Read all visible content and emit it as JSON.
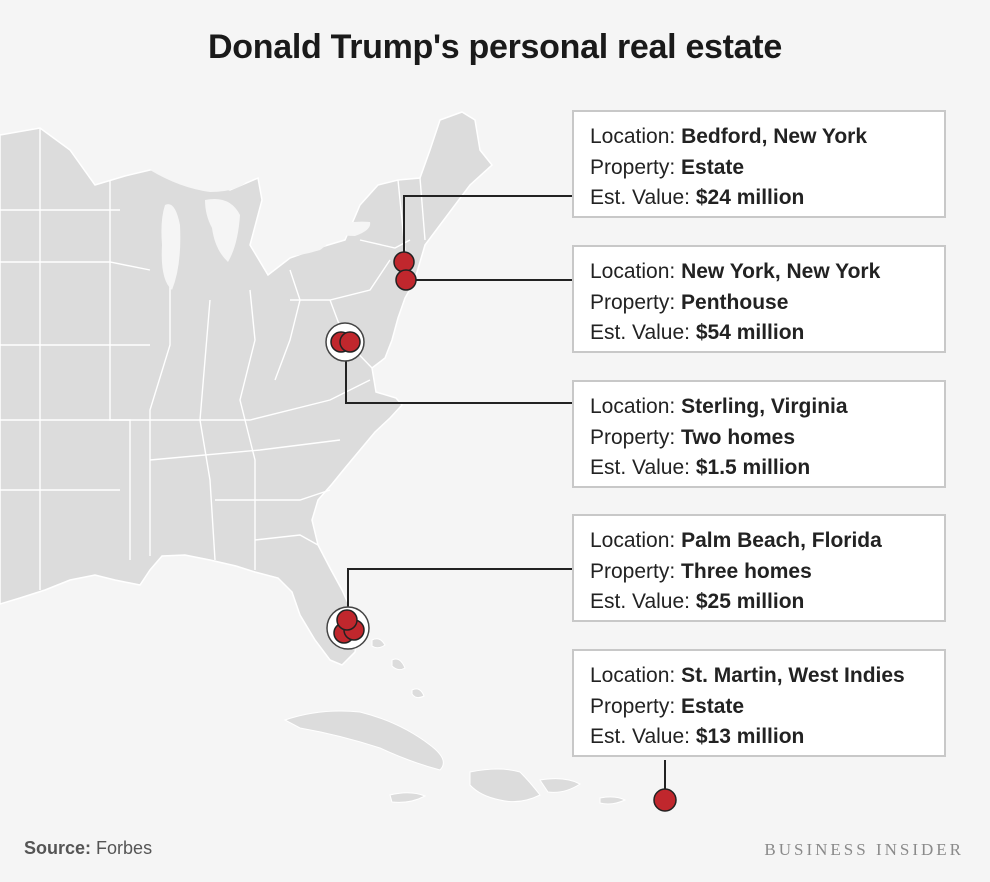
{
  "title": "Donald Trump's personal real estate",
  "colors": {
    "marker": "#c0272d",
    "land": "#dcdcdc",
    "water": "#f5f5f5",
    "leader": "#222222"
  },
  "properties": [
    {
      "location_label": "Location:",
      "location": "Bedford, New York",
      "property_label": "Property:",
      "property": "Estate",
      "value_label": "Est. Value:",
      "value": "$24 million"
    },
    {
      "location_label": "Location:",
      "location": "New York, New York",
      "property_label": "Property:",
      "property": "Penthouse",
      "value_label": "Est. Value:",
      "value": "$54 million"
    },
    {
      "location_label": "Location:",
      "location": "Sterling, Virginia",
      "property_label": "Property:",
      "property": "Two homes",
      "value_label": "Est. Value:",
      "value": "$1.5 million"
    },
    {
      "location_label": "Location:",
      "location": "Palm Beach, Florida",
      "property_label": "Property:",
      "property": "Three homes",
      "value_label": "Est. Value:",
      "value": "$25 million"
    },
    {
      "location_label": "Location:",
      "location": "St. Martin, West Indies",
      "property_label": "Property:",
      "property": "Estate",
      "value_label": "Est. Value:",
      "value": "$13 million"
    }
  ],
  "footer": {
    "source_label": "Source:",
    "source": "Forbes",
    "brand": "BUSINESS INSIDER"
  }
}
